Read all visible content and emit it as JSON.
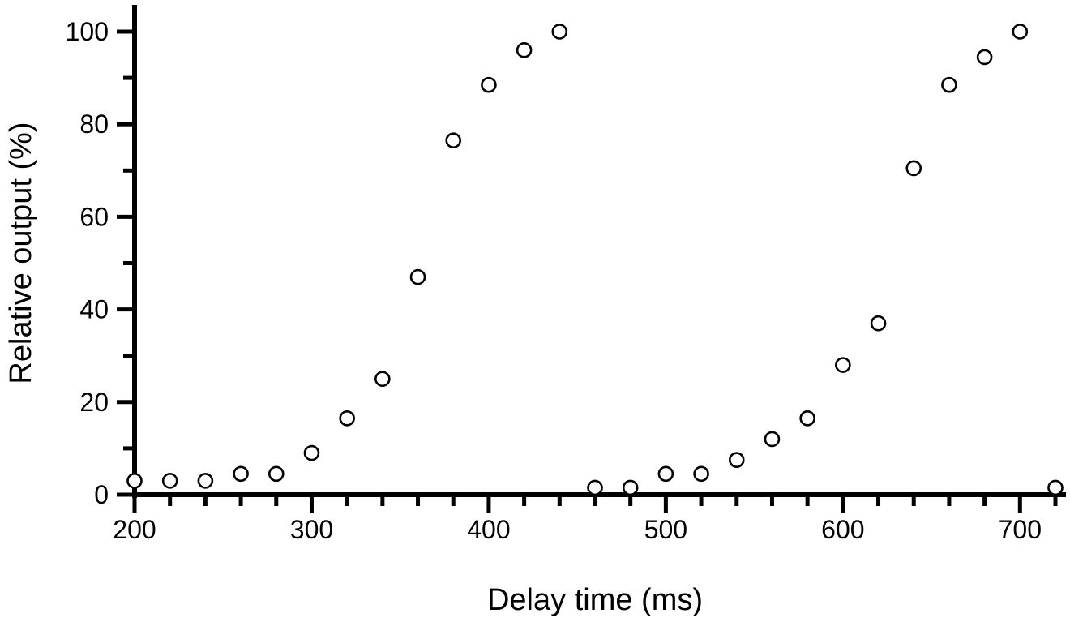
{
  "chart_data": {
    "type": "scatter",
    "title": "",
    "xlabel": "Delay time (ms)",
    "ylabel": "Relative output (%)",
    "xlim": [
      200,
      720
    ],
    "ylim": [
      0,
      100
    ],
    "x_ticks": [
      200,
      300,
      400,
      500,
      600,
      700
    ],
    "x_minor_step": 20,
    "y_ticks": [
      0,
      20,
      40,
      60,
      80,
      100
    ],
    "y_minor_step": 10,
    "grid": false,
    "legend": "none",
    "marker": "open-circle",
    "colors": {
      "axis": "#000000",
      "marker_stroke": "#000000",
      "marker_fill": "#ffffff"
    },
    "series": [
      {
        "x": [
          200,
          220,
          240,
          260,
          280,
          300,
          320,
          340,
          360,
          380,
          400,
          420,
          440,
          460,
          480,
          500,
          520,
          540,
          560,
          580,
          600,
          620,
          640,
          660,
          680,
          700,
          720
        ],
        "y": [
          3,
          3,
          3,
          4.5,
          4.5,
          9,
          16.5,
          25,
          47,
          76.5,
          88.5,
          96,
          100,
          1.5,
          1.5,
          4.5,
          4.5,
          7.5,
          12,
          16.5,
          28,
          37,
          70.5,
          88.5,
          94.5,
          100,
          1.5
        ]
      }
    ]
  }
}
